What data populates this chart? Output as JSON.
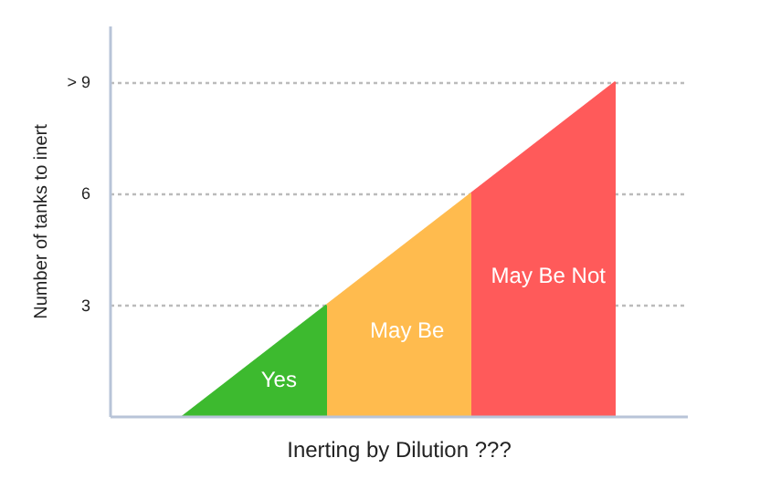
{
  "chart_data": {
    "type": "area",
    "xlabel": "Inerting by Dilution ???",
    "ylabel": "Number of tanks to inert",
    "categories": [
      null,
      null,
      null,
      null
    ],
    "series": [
      {
        "name": "Yes",
        "color": "#3dba2f",
        "values": [
          0,
          3,
          null,
          null
        ]
      },
      {
        "name": "May Be",
        "color": "#ffbb4e",
        "values": [
          null,
          3,
          6,
          null
        ]
      },
      {
        "name": "May Be Not",
        "color": "#ff5a5a",
        "values": [
          null,
          null,
          6,
          9
        ]
      }
    ],
    "ylim": [
      0,
      10.5
    ],
    "yticks": [
      3,
      6,
      {
        "value": 9,
        "label": "> 9"
      }
    ],
    "tick_labels": "y",
    "grid": "y",
    "line_style": "dotted"
  }
}
